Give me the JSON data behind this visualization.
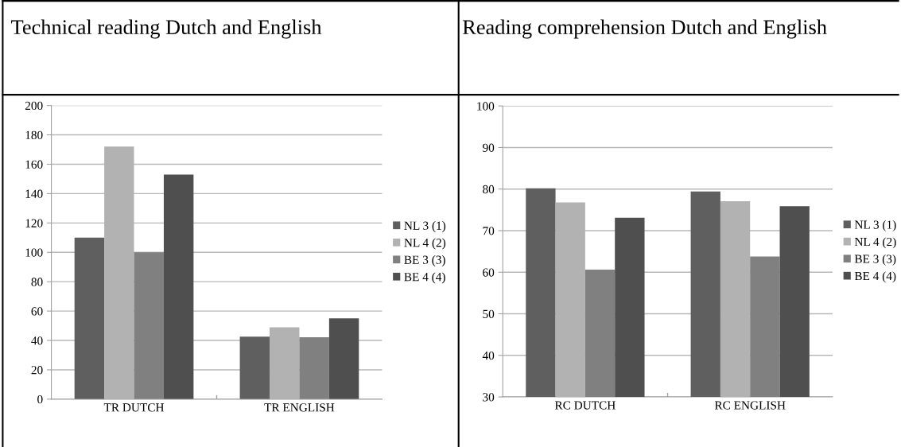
{
  "chart_data": [
    {
      "type": "bar",
      "title": "Technical reading Dutch and English",
      "categories": [
        "TR DUTCH",
        "TR ENGLISH"
      ],
      "series": [
        {
          "name": "NL 3 (1)",
          "color": "#5f5f5f",
          "values": [
            110,
            42.6
          ]
        },
        {
          "name": "NL 4 (2)",
          "color": "#b2b2b2",
          "values": [
            172,
            49
          ]
        },
        {
          "name": "BE 3 (3)",
          "color": "#808080",
          "values": [
            100,
            42.2
          ]
        },
        {
          "name": "BE 4 (4)",
          "color": "#4f4f4f",
          "values": [
            153,
            55
          ]
        }
      ],
      "ylim": [
        0,
        200
      ],
      "yticks": [
        0,
        20,
        40,
        60,
        80,
        100,
        120,
        140,
        160,
        180,
        200
      ],
      "grid": "y",
      "legend": "right"
    },
    {
      "type": "bar",
      "title": "Reading comprehension Dutch and English",
      "categories": [
        "RC DUTCH",
        "RC ENGLISH"
      ],
      "series": [
        {
          "name": "NL 3 (1)",
          "color": "#5f5f5f",
          "values": [
            80.2,
            79.4
          ]
        },
        {
          "name": "NL 4 (2)",
          "color": "#b2b2b2",
          "values": [
            76.8,
            77.1
          ]
        },
        {
          "name": "BE 3 (3)",
          "color": "#808080",
          "values": [
            60.6,
            63.8
          ]
        },
        {
          "name": "BE 4 (4)",
          "color": "#4f4f4f",
          "values": [
            73.1,
            75.9
          ]
        }
      ],
      "ylim": [
        30,
        100
      ],
      "yticks": [
        30,
        40,
        50,
        60,
        70,
        80,
        90,
        100
      ],
      "grid": "y",
      "legend": "right"
    }
  ]
}
